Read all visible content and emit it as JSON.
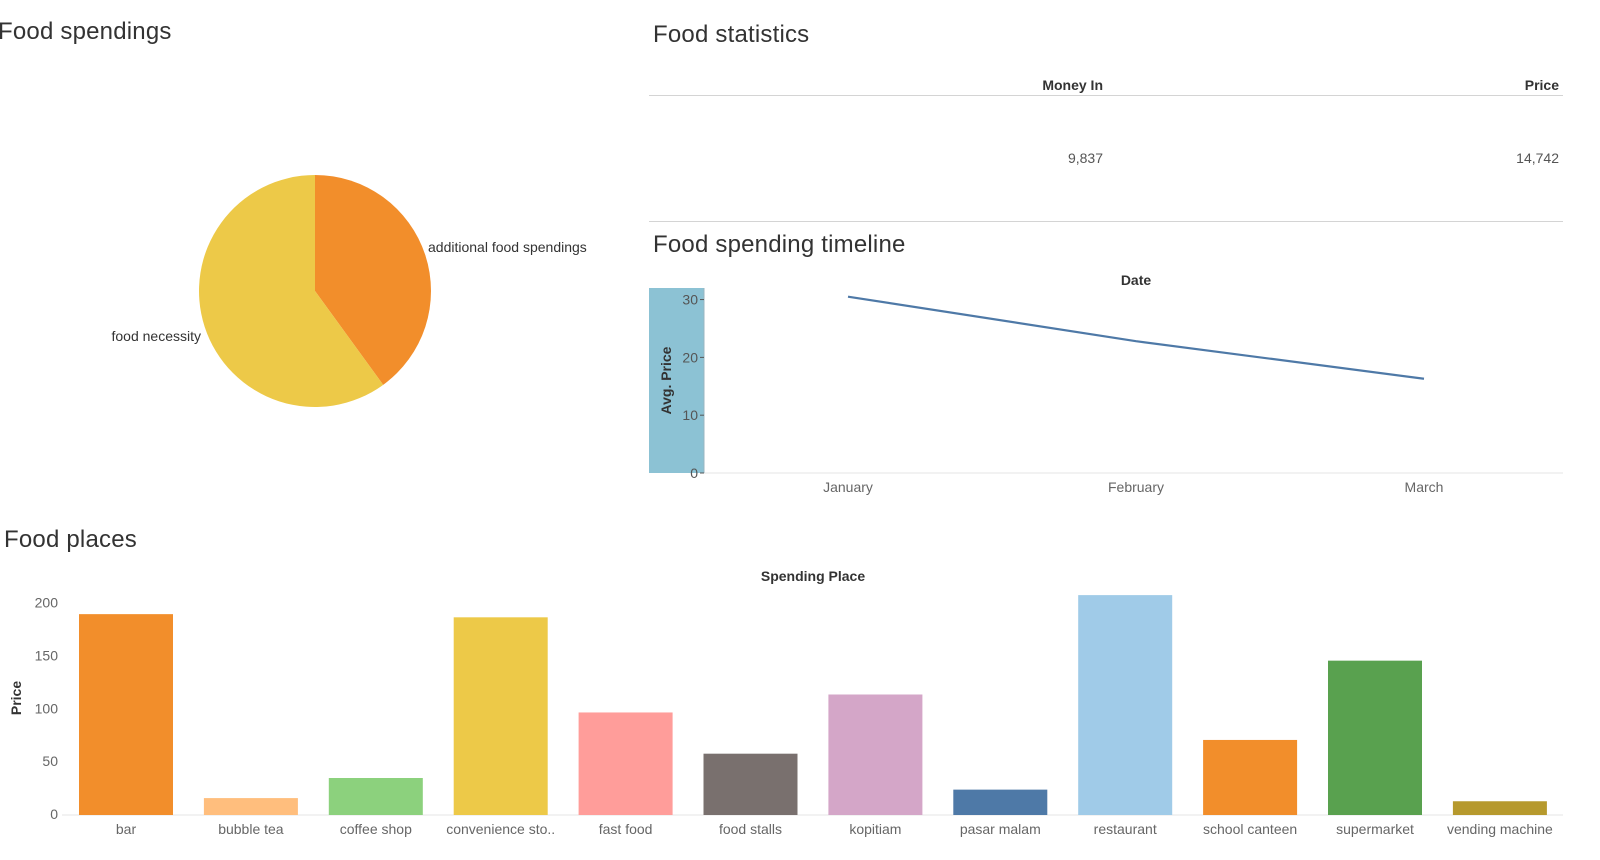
{
  "titles": {
    "food_spendings": "Food spendings",
    "food_statistics": "Food statistics",
    "food_spending_timeline": "Food spending timeline",
    "food_places": "Food places"
  },
  "statistics": {
    "headers": [
      "Money In",
      "Price"
    ],
    "values": [
      "9,837",
      "14,742"
    ]
  },
  "colors": {
    "axis": "#cccccc",
    "label": "#666666",
    "line": "#4e79a7",
    "y_axis_band": "#8cc2d4"
  },
  "chart_data": [
    {
      "type": "pie",
      "title": "Food spendings",
      "slices": [
        {
          "label": "additional food spendings",
          "value": 40,
          "color": "#f28e2b"
        },
        {
          "label": "food necessity",
          "value": 60,
          "color": "#edc948"
        }
      ]
    },
    {
      "type": "line",
      "title": "Food spending timeline",
      "xlabel": "Date",
      "ylabel": "Avg. Price",
      "categories": [
        "January",
        "February",
        "March"
      ],
      "series": [
        {
          "values": [
            30.5,
            22.8,
            16.3
          ],
          "color": "#4e79a7"
        }
      ],
      "ylim": [
        0,
        32
      ],
      "yticks": [
        0,
        10,
        20,
        30
      ],
      "grid": false
    },
    {
      "type": "bar",
      "title": "Food places",
      "xlabel": "Spending Place",
      "ylabel": "Price",
      "categories": [
        "bar",
        "bubble tea",
        "coffee shop",
        "convenience sto..",
        "fast food",
        "food stalls",
        "kopitiam",
        "pasar malam",
        "restaurant",
        "school canteen",
        "supermarket",
        "vending machine"
      ],
      "values": [
        190,
        16,
        35,
        187,
        97,
        58,
        114,
        24,
        208,
        71,
        146,
        13
      ],
      "colors": [
        "#f28e2b",
        "#ffbe7d",
        "#8cd17d",
        "#edc948",
        "#ff9d9a",
        "#79706e",
        "#d4a6c8",
        "#4e79a7",
        "#a0cbe8",
        "#f28e2b",
        "#59a14f",
        "#b6992d"
      ],
      "ylim": [
        0,
        210
      ],
      "yticks": [
        0,
        50,
        100,
        150,
        200
      ],
      "grid": false
    }
  ]
}
